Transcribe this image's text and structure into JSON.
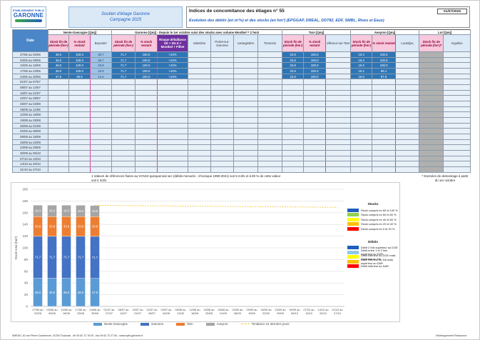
{
  "header": {
    "logo_top": "ETABLISSEMENT PUBLIC",
    "logo_name": "GARONNE",
    "campaign": [
      "Soutien d'étiage Garonne",
      "Campagne 2025"
    ],
    "title": "Indices de concomitance des étiages n° 55",
    "date": "01/07/2025",
    "subtitle": "Evolution des débits (en m³/s) et des stocks (en hm³) (EPGGAP, DREAL, DDT82, EDF, SMBL, Rives et Eaux)"
  },
  "table": {
    "date_header": "Date",
    "groups": [
      "Neste-Gascogne [Qmj]",
      "Garonne [Qmj] - Depuis le 1er octobre suivi des stocks avec volume Montbel = 2 hm3",
      "Tarn [Qmj]",
      "Aveyron [Qmj]",
      "Lot [Qmj]"
    ],
    "columns": [
      "Stock fin de période (hm³)",
      "% stock restant",
      "Beyrede¹",
      "Stock fin de période (hm³)",
      "% stock restant",
      "Risque défaillance Oô + IGLS + Montbel + Filhet",
      "Valentine",
      "Portet-sur-Garonne",
      "Lamagistère",
      "Tonneins",
      "Stock fin de période (hm³)",
      "% stock restant",
      "Villemur-sur-Tarn",
      "Stock fin de période (hm³)",
      "% stock restant",
      "Loubéjac",
      "Stock fin de période (hm³)*",
      "Aiguillon"
    ],
    "rows": [
      {
        "date": "27/05 au 02/06",
        "values": [
          "48.0",
          "100.0",
          "30.7",
          "71.7",
          "100.0",
          ">10%",
          null,
          null,
          null,
          null,
          "33.8",
          "100.0",
          null,
          "19.3",
          "100.0",
          null,
          null,
          null
        ]
      },
      {
        "date": "03/06 au 09/06",
        "values": [
          "48.0",
          "100.0",
          "35.7",
          "71.7",
          "100.0",
          ">10%",
          null,
          null,
          null,
          null,
          "33.8",
          "100.0",
          null,
          "19.3",
          "100.0",
          null,
          null,
          null
        ]
      },
      {
        "date": "10/06 au 16/06",
        "values": [
          "48.0",
          "100.0",
          "23.9",
          "71.7",
          "100.0",
          ">10%",
          null,
          null,
          null,
          null,
          "33.8",
          "100.0",
          null,
          "19.3",
          "100.0",
          null,
          null,
          null
        ]
      },
      {
        "date": "17/06 au 23/06",
        "values": [
          "48.0",
          "100.0",
          "16.9",
          "71.7",
          "100.0",
          ">10%",
          null,
          null,
          null,
          null,
          "33.8",
          "100.0",
          null,
          "19.2",
          "99.1",
          null,
          null,
          null
        ]
      },
      {
        "date": "24/06 au 30/06",
        "values": [
          "47.9",
          "99.9",
          "13.4",
          "71.7",
          "100.0",
          ">10%",
          null,
          null,
          null,
          null,
          "33.8",
          "100.0",
          null,
          "18.9",
          "97.9",
          null,
          null,
          null
        ]
      },
      {
        "date": "01/07 au 07/07"
      },
      {
        "date": "08/07 au 14/07"
      },
      {
        "date": "15/07 au 21/07"
      },
      {
        "date": "22/07 au 28/07"
      },
      {
        "date": "29/07 au 04/08"
      },
      {
        "date": "05/08 au 11/08"
      },
      {
        "date": "12/08 au 18/08"
      },
      {
        "date": "19/08 au 25/08"
      },
      {
        "date": "26/08 au 01/09"
      },
      {
        "date": "02/09 au 08/09"
      },
      {
        "date": "09/09 au 15/09"
      },
      {
        "date": "16/09 au 22/09"
      },
      {
        "date": "23/09 au 29/09"
      },
      {
        "date": "30/09 au 06/10"
      },
      {
        "date": "07/10 au 13/10"
      },
      {
        "date": "14/10 au 20/10"
      },
      {
        "date": "21/10 au 27/10"
      }
    ]
  },
  "notes": [
    "1 Valeurs de références fixées au VCN10 quinquennal sec (débits mesurés - chronique 1990-2021) soit 5 m3/s et à 80 % de cette valeur soit 4 m3/s",
    "* Données de destockage à partir du 1er octobre"
  ],
  "chart_data": {
    "type": "stacked_bar",
    "y_label": "Stock total (hm³)",
    "ylim": [
      0,
      200
    ],
    "yticks": [
      0,
      20,
      40,
      60,
      80,
      100,
      120,
      140,
      160,
      180,
      200
    ],
    "grid": true,
    "categories": [
      "27/05 au 02/06",
      "03/06 au 09/06",
      "10/06 au 16/06",
      "17/06 au 23/06",
      "24/06 au 30/06",
      "01/07 au 07/07",
      "08/07 au 14/07",
      "15/07 au 21/07",
      "22/07 au 28/07",
      "29/07 au 04/08",
      "05/08 au 11/08",
      "12/08 au 18/08",
      "19/08 au 25/08",
      "26/08 au 01/09",
      "02/09 au 08/09",
      "09/09 au 15/09",
      "16/09 au 22/09",
      "23/09 au 29/09",
      "30/09 au 06/10",
      "07/10 au 13/10",
      "14/10 au 20/10",
      "21/10 au 27/10"
    ],
    "series": [
      {
        "name": "Neste-Gascogne",
        "color": "#5b9bd5",
        "values": [
          48.0,
          48.0,
          48.0,
          48.0,
          47.9,
          null,
          null,
          null,
          null,
          null,
          null,
          null,
          null,
          null,
          null,
          null,
          null,
          null,
          null,
          null,
          null,
          null
        ],
        "value_labels": [
          "48.0",
          "48.0",
          "48.0",
          "48.0",
          "47.9",
          null,
          null,
          null,
          null,
          null,
          null,
          null,
          null,
          null,
          null,
          null,
          null,
          null,
          null,
          null,
          null,
          null
        ]
      },
      {
        "name": "Garonne",
        "color": "#4472c4",
        "values": [
          71.7,
          71.7,
          71.7,
          71.7,
          71.7,
          null,
          null,
          null,
          null,
          null,
          null,
          null,
          null,
          null,
          null,
          null,
          null,
          null,
          null,
          null,
          null,
          null
        ]
      },
      {
        "name": "Tarn",
        "color": "#ed7d31",
        "values": [
          33.8,
          33.8,
          33.8,
          33.8,
          33.8,
          null,
          null,
          null,
          null,
          null,
          null,
          null,
          null,
          null,
          null,
          null,
          null,
          null,
          null,
          null,
          null,
          null
        ]
      },
      {
        "name": "Aveyron",
        "color": "#a5a5a5",
        "values": [
          19.3,
          19.3,
          19.3,
          19.2,
          18.9,
          null,
          null,
          null,
          null,
          null,
          null,
          null,
          null,
          null,
          null,
          null,
          null,
          null,
          null,
          null,
          null,
          null
        ]
      }
    ],
    "trend": {
      "name": "Tendance 21 derniers jours",
      "color": "#f2c744",
      "values": [
        null,
        null,
        null,
        null,
        172.6,
        172.4,
        172.2,
        172.0,
        171.8,
        171.6,
        171.4,
        171.2,
        171.0,
        170.8,
        170.6,
        170.4,
        170.2,
        170.0,
        169.8,
        169.6,
        169.4,
        169.2
      ]
    }
  },
  "legend": {
    "stocks_title": "Stocks",
    "stocks": [
      {
        "label": "Stock compris en 80 et 100 %",
        "color": "#1f5fbf"
      },
      {
        "label": "Stock compris en 60 et 80 %",
        "color": "#92d050"
      },
      {
        "label": "Stock compris en 40 et 60 %",
        "color": "#ffff00"
      },
      {
        "label": "Stock compris en 20 et 40 %",
        "color": "#ffc000"
      },
      {
        "label": "Stock compris en 0 et 20 %",
        "color": "#ff0000"
      }
    ],
    "debits_title": "Débits",
    "debits": [
      {
        "label": "Débit 2 fois supérieur au DOE",
        "color": "#1f5fbf"
      },
      {
        "label": "Débit entre 1 et 2 fois supérieur au DOE",
        "color": "#8fc8e8"
      },
      {
        "label": "Débit inférieur au DOE mais supérieur au DA",
        "color": "#ffff00"
      },
      {
        "label": "Débit inférieur au DA mais supérieur au DAR",
        "color": "#ffc000"
      },
      {
        "label": "Débit inférieur au DAR",
        "color": "#ff0000"
      }
    ]
  },
  "footer": {
    "address": "SMEAG, 61 rue Pierre Cazeneuve, 31200 Toulouse - tél 05 62 72 76 00 - fax 05 62 72 27 84 - www.eptb-garonne.fr",
    "right": "Développement Ressource"
  }
}
